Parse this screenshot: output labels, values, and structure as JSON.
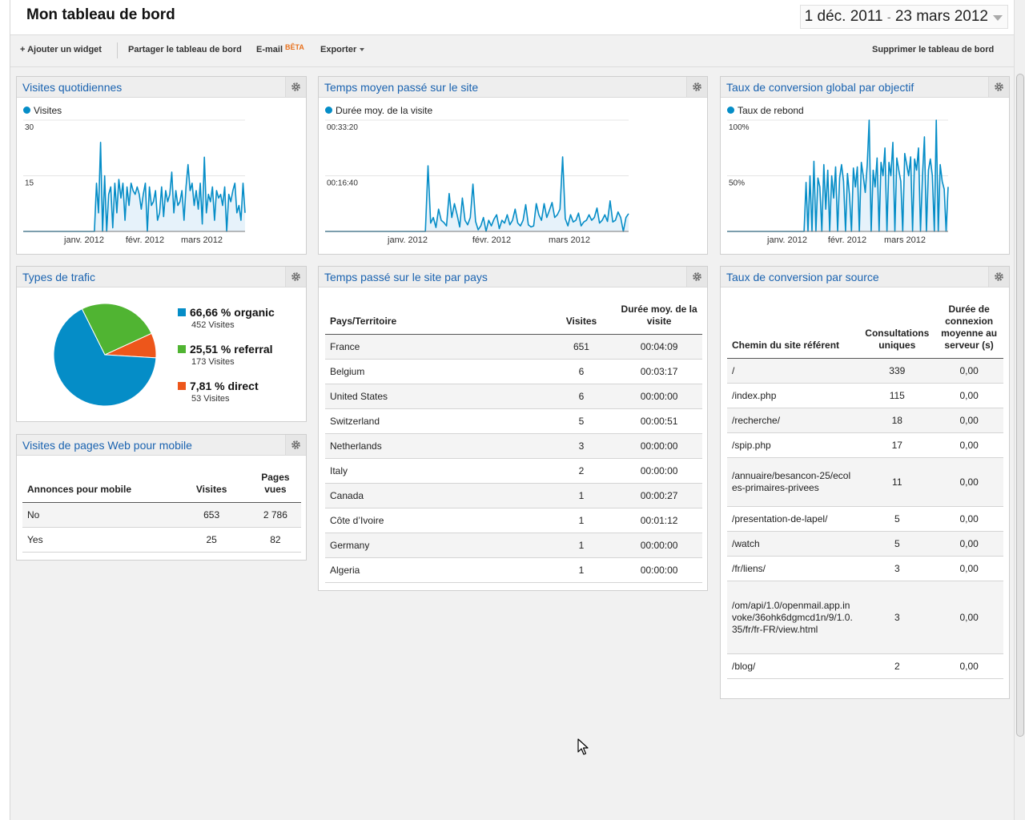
{
  "header": {
    "title": "Mon tableau de bord",
    "date_start": "1 déc. 2011",
    "date_sep": "-",
    "date_end": "23 mars 2012"
  },
  "toolbar": {
    "add_widget": "+ Ajouter un widget",
    "share": "Partager le tableau de bord",
    "email": "E-mail",
    "beta": "BÊTA",
    "export": "Exporter",
    "delete": "Supprimer le tableau de bord"
  },
  "colors": {
    "series": "#058dc7",
    "organic": "#058dc7",
    "referral": "#50b432",
    "direct": "#ed561b",
    "title": "#1a63b0"
  },
  "widgets": {
    "daily_visits": {
      "title": "Visites quotidiennes",
      "legend": "Visites",
      "y_ticks": [
        "30",
        "15"
      ],
      "x_ticks": [
        "janv. 2012",
        "févr. 2012",
        "mars 2012"
      ]
    },
    "avg_time": {
      "title": "Temps moyen passé sur le site",
      "legend": "Durée moy. de la visite",
      "y_ticks": [
        "00:33:20",
        "00:16:40"
      ],
      "x_ticks": [
        "janv. 2012",
        "févr. 2012",
        "mars 2012"
      ]
    },
    "conversion_goal": {
      "title": "Taux de conversion global par objectif",
      "legend": "Taux de rebond",
      "y_ticks": [
        "100%",
        "50%"
      ],
      "x_ticks": [
        "janv. 2012",
        "févr. 2012",
        "mars 2012"
      ]
    },
    "traffic_types": {
      "title": "Types de trafic",
      "items": [
        {
          "label": "66,66 % organic",
          "sub": "452 Visites"
        },
        {
          "label": "25,51 % referral",
          "sub": "173 Visites"
        },
        {
          "label": "7,81 % direct",
          "sub": "53 Visites"
        }
      ]
    },
    "mobile": {
      "title": "Visites de pages Web pour mobile",
      "headers": [
        "Annonces pour mobile",
        "Visites",
        "Pages vues"
      ],
      "rows": [
        [
          "No",
          "653",
          "2 786"
        ],
        [
          "Yes",
          "25",
          "82"
        ]
      ]
    },
    "country": {
      "title": "Temps passé sur le site par pays",
      "headers": [
        "Pays/Territoire",
        "Visites",
        "Durée moy. de la visite"
      ],
      "rows": [
        [
          "France",
          "651",
          "00:04:09"
        ],
        [
          "Belgium",
          "6",
          "00:03:17"
        ],
        [
          "United States",
          "6",
          "00:00:00"
        ],
        [
          "Switzerland",
          "5",
          "00:00:51"
        ],
        [
          "Netherlands",
          "3",
          "00:00:00"
        ],
        [
          "Italy",
          "2",
          "00:00:00"
        ],
        [
          "Canada",
          "1",
          "00:00:27"
        ],
        [
          "Côte d’Ivoire",
          "1",
          "00:01:12"
        ],
        [
          "Germany",
          "1",
          "00:00:00"
        ],
        [
          "Algeria",
          "1",
          "00:00:00"
        ]
      ]
    },
    "source": {
      "title": "Taux de conversion par source",
      "headers": [
        "Chemin du site référent",
        "Consultations uniques",
        "Durée de connexion moyenne au serveur (s)"
      ],
      "rows": [
        [
          "/",
          "339",
          "0,00"
        ],
        [
          "/index.php",
          "115",
          "0,00"
        ],
        [
          "/recherche/",
          "18",
          "0,00"
        ],
        [
          "/spip.php",
          "17",
          "0,00"
        ],
        [
          "/annuaire/besancon-25/ecoles-primaires-privees",
          "11",
          "0,00"
        ],
        [
          "/presentation-de-lapel/",
          "5",
          "0,00"
        ],
        [
          "/watch",
          "5",
          "0,00"
        ],
        [
          "/fr/liens/",
          "3",
          "0,00"
        ],
        [
          "/om/api/1.0/openmail.app.invoke/36ohk6dgmcd1n/9/1.0.35/fr/fr-FR/view.html",
          "3",
          "0,00"
        ],
        [
          "/blog/",
          "2",
          "0,00"
        ]
      ]
    }
  },
  "chart_data": [
    {
      "type": "area",
      "legend": "Visites",
      "x_range": [
        "1 déc. 2011",
        "23 mars 2012"
      ],
      "ylim": [
        0,
        30
      ],
      "y_ticks": [
        15,
        30
      ],
      "x_ticks": [
        "janv. 2012",
        "févr. 2012",
        "mars 2012"
      ],
      "values": [
        0,
        0,
        0,
        0,
        0,
        0,
        0,
        0,
        0,
        0,
        0,
        0,
        0,
        0,
        0,
        0,
        0,
        0,
        0,
        0,
        0,
        0,
        0,
        0,
        0,
        0,
        0,
        0,
        0,
        0,
        0,
        0,
        0,
        0,
        0,
        0,
        13,
        5,
        24,
        0,
        15,
        0,
        10,
        12,
        1,
        13,
        5,
        14,
        9,
        13,
        3,
        12,
        7,
        13,
        11,
        10,
        12,
        10,
        6,
        10,
        13,
        0,
        12,
        7,
        8,
        11,
        3,
        5,
        12,
        4,
        11,
        8,
        10,
        16,
        5,
        11,
        7,
        8,
        11,
        3,
        12,
        18,
        11,
        13,
        7,
        11,
        6,
        13,
        2,
        20,
        5,
        10,
        8,
        12,
        3,
        11,
        9,
        10,
        7,
        12,
        0,
        10,
        8,
        11,
        13,
        5,
        7,
        3,
        13,
        5
      ]
    },
    {
      "type": "area",
      "legend": "Durée moy. de la visite",
      "x_range": [
        "1 déc. 2011",
        "23 mars 2012"
      ],
      "ylim": [
        0,
        2000
      ],
      "y_ticks": [
        "00:16:40",
        "00:33:20"
      ],
      "x_ticks": [
        "janv. 2012",
        "févr. 2012",
        "mars 2012"
      ],
      "values": [
        0,
        0,
        0,
        0,
        0,
        0,
        0,
        0,
        0,
        0,
        0,
        0,
        0,
        0,
        0,
        0,
        0,
        0,
        0,
        0,
        0,
        0,
        0,
        0,
        0,
        0,
        0,
        0,
        0,
        0,
        0,
        0,
        0,
        0,
        0,
        0,
        0,
        0,
        0,
        1180,
        150,
        250,
        70,
        400,
        200,
        160,
        100,
        680,
        250,
        500,
        300,
        80,
        600,
        200,
        120,
        250,
        850,
        180,
        30,
        100,
        250,
        0,
        200,
        100,
        220,
        300,
        50,
        200,
        150,
        300,
        120,
        200,
        400,
        150,
        100,
        200,
        480,
        120,
        80,
        100,
        500,
        300,
        200,
        500,
        250,
        380,
        520,
        250,
        300,
        400,
        1340,
        230,
        100,
        300,
        170,
        200,
        330,
        100,
        170,
        200,
        300,
        200,
        250,
        420,
        150,
        200,
        300,
        180,
        550,
        170,
        200,
        350,
        250,
        0,
        250,
        320
      ]
    },
    {
      "type": "area",
      "legend": "Taux de rebond",
      "x_range": [
        "1 déc. 2011",
        "23 mars 2012"
      ],
      "ylim": [
        0,
        100
      ],
      "y_ticks": [
        "50%",
        "100%"
      ],
      "x_ticks": [
        "janv. 2012",
        "févr. 2012",
        "mars 2012"
      ],
      "values": [
        0,
        0,
        0,
        0,
        0,
        0,
        0,
        0,
        0,
        0,
        0,
        0,
        0,
        0,
        0,
        0,
        0,
        0,
        0,
        0,
        0,
        0,
        0,
        0,
        0,
        0,
        0,
        0,
        0,
        0,
        0,
        0,
        0,
        0,
        0,
        0,
        0,
        0,
        0,
        0,
        44,
        0,
        50,
        0,
        63,
        0,
        48,
        40,
        0,
        60,
        20,
        55,
        0,
        50,
        30,
        58,
        0,
        48,
        60,
        45,
        0,
        52,
        33,
        0,
        57,
        40,
        58,
        0,
        62,
        50,
        35,
        60,
        100,
        0,
        55,
        40,
        66,
        0,
        62,
        50,
        75,
        0,
        62,
        50,
        80,
        0,
        66,
        55,
        45,
        0,
        70,
        60,
        50,
        67,
        0,
        65,
        55,
        75,
        0,
        50,
        85,
        0,
        55,
        65,
        50,
        0,
        100,
        0,
        60,
        45,
        38,
        0,
        40
      ]
    },
    {
      "type": "pie",
      "title": "Types de trafic",
      "categories": [
        "organic",
        "referral",
        "direct"
      ],
      "values": [
        66.66,
        25.51,
        7.81
      ],
      "counts": [
        452,
        173,
        53
      ]
    }
  ]
}
